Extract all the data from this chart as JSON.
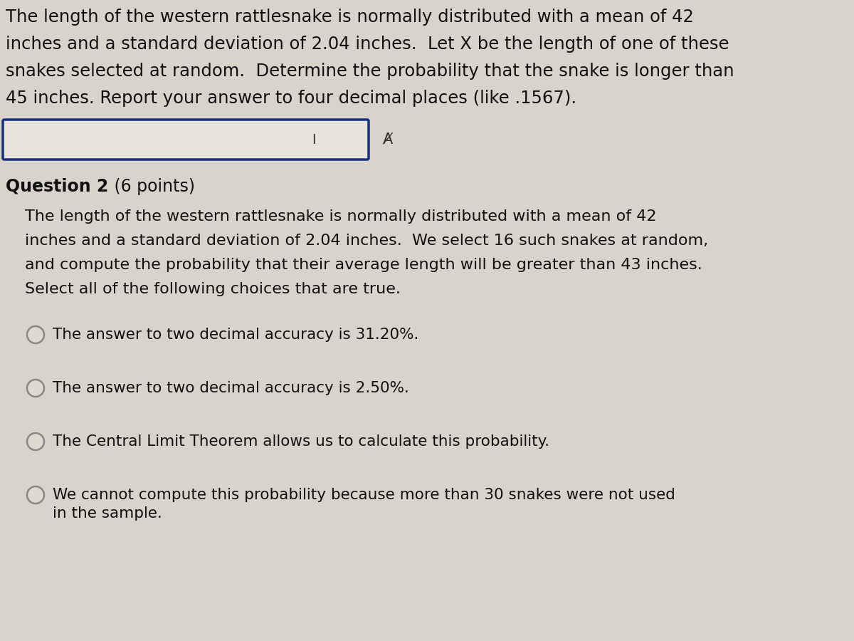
{
  "bg_color": "#d8d4cc",
  "text_color": "#111111",
  "q1_lines": [
    "The length of the western rattlesnake is normally distributed with a mean of 42",
    "inches and a standard deviation of 2.04 inches.  Let X be the length of one of these",
    "snakes selected at random.  Determine the probability that the snake is longer than",
    "45 inches. Report your answer to four decimal places (like .1567)."
  ],
  "q2_header_bold": "Question 2",
  "q2_header_normal": " (6 points)",
  "q2_lines": [
    "The length of the western rattlesnake is normally distributed with a mean of 42",
    "inches and a standard deviation of 2.04 inches.  We select 16 such snakes at random,",
    "and compute the probability that their average length will be greater than 43 inches.",
    "Select all of the following choices that are true."
  ],
  "choices": [
    "The answer to two decimal accuracy is 31.20%.",
    "The answer to two decimal accuracy is 2.50%.",
    "The Central Limit Theorem allows us to calculate this probability.",
    [
      "We cannot compute this probability because more than 30 snakes were not used",
      "in the sample."
    ]
  ],
  "box_edge_color": "#1a2f7a",
  "box_face_color": "#e8e4dc",
  "circle_edge_color": "#888888",
  "circle_face_color": "#dedad2"
}
